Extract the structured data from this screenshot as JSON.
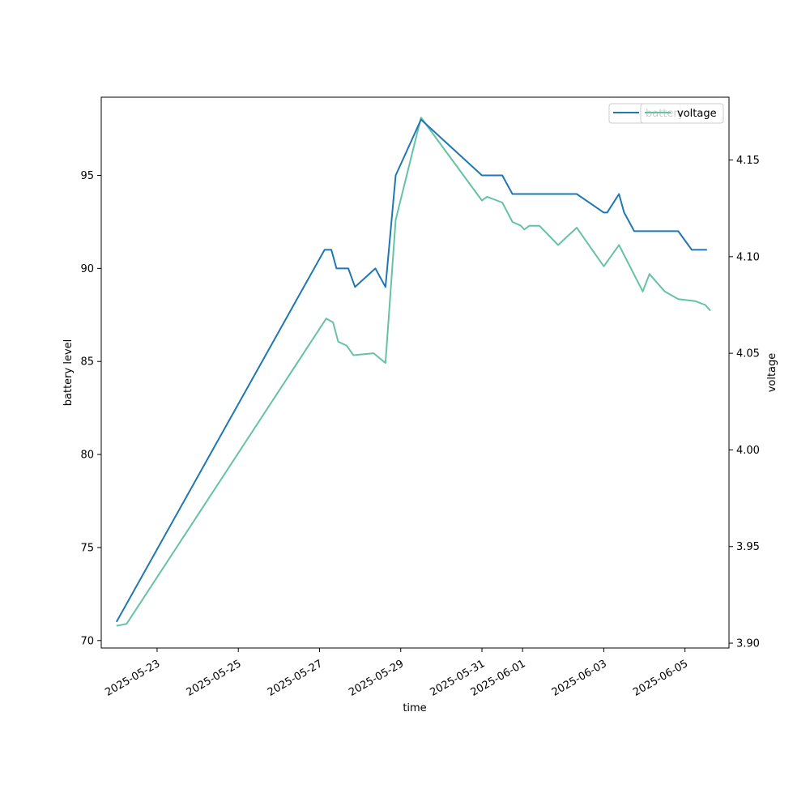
{
  "chart_data": {
    "type": "line",
    "xlabel": "time",
    "ylabel": "battery level",
    "ylabel_right": "voltage",
    "legend_placement": "top-right",
    "grid": false,
    "xlim": [
      "2025-05-21T15:00",
      "2025-06-06T02:00"
    ],
    "ylim": [
      69.6,
      99.2
    ],
    "ylim_right": [
      3.8975,
      4.1825
    ],
    "x_ticks": [
      "2025-05-23",
      "2025-05-25",
      "2025-05-27",
      "2025-05-29",
      "2025-05-31",
      "2025-06-01",
      "2025-06-03",
      "2025-06-05"
    ],
    "y_ticks": [
      70,
      75,
      80,
      85,
      90,
      95
    ],
    "y_ticks_right": [
      3.9,
      3.95,
      4.0,
      4.05,
      4.1,
      4.15
    ],
    "y_ticks_right_labels": [
      "3.90",
      "3.95",
      "4.00",
      "4.05",
      "4.10",
      "4.15"
    ],
    "series": [
      {
        "name": "battery",
        "axis": "left",
        "color": "#1f77b4",
        "points": [
          [
            "2025-05-22T00:00",
            71
          ],
          [
            "2025-05-27T03:00",
            91
          ],
          [
            "2025-05-27T07:00",
            91
          ],
          [
            "2025-05-27T10:00",
            90
          ],
          [
            "2025-05-27T17:00",
            90
          ],
          [
            "2025-05-27T21:00",
            89
          ],
          [
            "2025-05-28T09:00",
            90
          ],
          [
            "2025-05-28T15:00",
            89
          ],
          [
            "2025-05-28T21:00",
            95
          ],
          [
            "2025-05-29T12:00",
            98
          ],
          [
            "2025-05-31T00:00",
            95
          ],
          [
            "2025-05-31T12:00",
            95
          ],
          [
            "2025-05-31T18:00",
            94
          ],
          [
            "2025-06-02T08:00",
            94
          ],
          [
            "2025-06-03T00:00",
            93
          ],
          [
            "2025-06-03T02:00",
            93
          ],
          [
            "2025-06-03T09:00",
            94
          ],
          [
            "2025-06-03T12:00",
            93
          ],
          [
            "2025-06-03T18:00",
            92
          ],
          [
            "2025-06-04T20:00",
            92
          ],
          [
            "2025-06-05T04:00",
            91
          ],
          [
            "2025-06-05T13:00",
            91
          ]
        ]
      },
      {
        "name": "voltage",
        "axis": "right",
        "color": "#66c2a5",
        "points": [
          [
            "2025-05-22T00:00",
            3.909
          ],
          [
            "2025-05-22T06:00",
            3.91
          ],
          [
            "2025-05-27T04:00",
            4.068
          ],
          [
            "2025-05-27T08:00",
            4.066
          ],
          [
            "2025-05-27T11:00",
            4.056
          ],
          [
            "2025-05-27T16:00",
            4.054
          ],
          [
            "2025-05-27T20:00",
            4.049
          ],
          [
            "2025-05-28T08:00",
            4.05
          ],
          [
            "2025-05-28T15:00",
            4.045
          ],
          [
            "2025-05-28T21:00",
            4.119
          ],
          [
            "2025-05-29T12:00",
            4.172
          ],
          [
            "2025-05-31T00:00",
            4.129
          ],
          [
            "2025-05-31T03:00",
            4.131
          ],
          [
            "2025-05-31T12:00",
            4.128
          ],
          [
            "2025-05-31T18:00",
            4.118
          ],
          [
            "2025-05-31T23:00",
            4.116
          ],
          [
            "2025-06-01T01:00",
            4.114
          ],
          [
            "2025-06-01T04:00",
            4.116
          ],
          [
            "2025-06-01T10:00",
            4.116
          ],
          [
            "2025-06-01T21:00",
            4.106
          ],
          [
            "2025-06-02T08:00",
            4.115
          ],
          [
            "2025-06-03T00:00",
            4.095
          ],
          [
            "2025-06-03T09:00",
            4.106
          ],
          [
            "2025-06-03T23:00",
            4.082
          ],
          [
            "2025-06-04T03:00",
            4.091
          ],
          [
            "2025-06-04T12:00",
            4.082
          ],
          [
            "2025-06-04T20:00",
            4.078
          ],
          [
            "2025-06-05T06:00",
            4.077
          ],
          [
            "2025-06-05T12:00",
            4.075
          ],
          [
            "2025-06-05T15:00",
            4.072
          ]
        ]
      }
    ],
    "legend_left": [
      "battery"
    ],
    "legend_right": [
      "voltage"
    ]
  }
}
